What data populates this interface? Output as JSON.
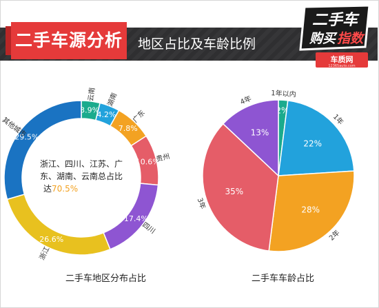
{
  "header": {
    "title": "二手车源分析",
    "subtitle": "地区占比及车龄比例",
    "logo_line1": "二手车",
    "logo_line2a": "购买",
    "logo_line2b": "指数",
    "logo_brand": "车质网",
    "logo_url": "12365auto.com"
  },
  "colors": {
    "header_bg": "#2f2f31",
    "accent_red": "#e53a3a",
    "green": "#1bab8d",
    "blue": "#22a2dc",
    "orange": "#f3a222",
    "red": "#e55d68",
    "purple": "#8e55d2",
    "yellow": "#e8c11f",
    "navy": "#1a73c2"
  },
  "chart_data": [
    {
      "type": "pie",
      "variant": "donut",
      "title": "二手车地区分布占比",
      "categories": [
        "云南",
        "湖南",
        "广东",
        "贵州",
        "四川",
        "浙江",
        "其他城市"
      ],
      "values": [
        3.9,
        4.2,
        7.8,
        10.6,
        17.4,
        26.6,
        29.5
      ],
      "value_labels": [
        "3.9%",
        "4.2%",
        "7.8%",
        "10.6%",
        "17.4%",
        "26.6%",
        "29.5%"
      ],
      "colors": [
        "#1bab8d",
        "#22a2dc",
        "#f3a222",
        "#e55d68",
        "#8e55d2",
        "#e8c11f",
        "#1a73c2"
      ],
      "center_annotation": {
        "line1": "浙江、四川、江苏、广",
        "line2": "东、湖南、云南总占比",
        "line3_prefix": "达",
        "line3_value": "70.5%"
      }
    },
    {
      "type": "pie",
      "title": "二手车车龄占比",
      "categories": [
        "1年以内",
        "1年",
        "2年",
        "3年",
        "4年"
      ],
      "values": [
        2,
        22,
        28,
        35,
        13
      ],
      "value_labels": [
        "2%",
        "22%",
        "28%",
        "35%",
        "13%"
      ],
      "colors": [
        "#1bab8d",
        "#22a2dc",
        "#f3a222",
        "#e55d68",
        "#8e55d2"
      ]
    }
  ]
}
